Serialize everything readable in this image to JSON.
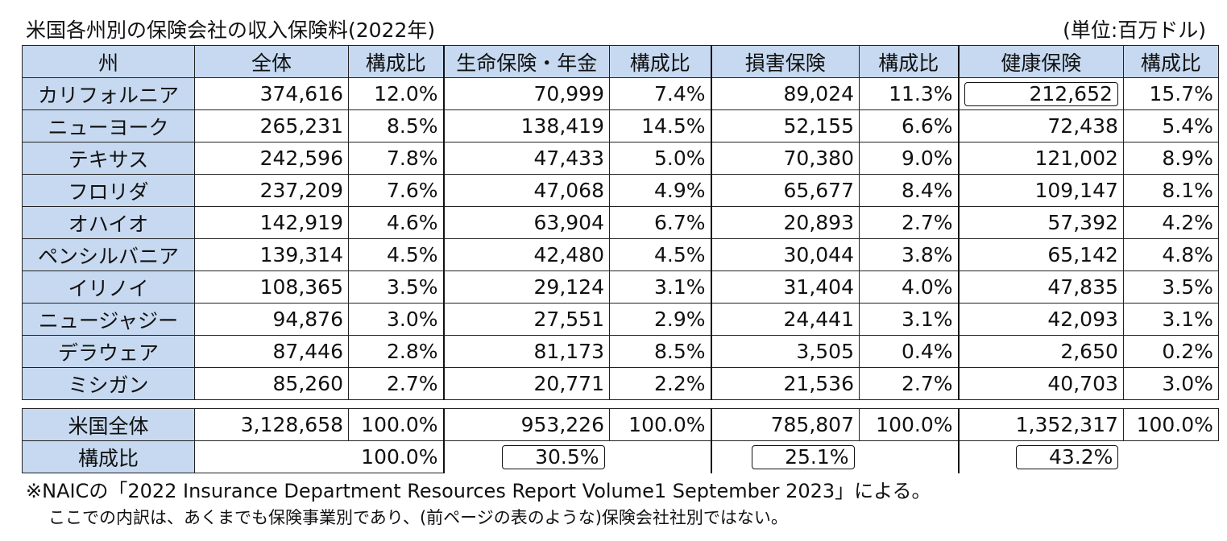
{
  "title": "米国各州別の保険会社の収入保険料(2022年)",
  "unit": "(単位:百万ドル)",
  "headers": [
    "州",
    "全体",
    "構成比",
    "生命保険・年金",
    "構成比",
    "損害保険",
    "構成比",
    "健康保険",
    "構成比"
  ],
  "rows": [
    {
      "state": "カリフォルニア",
      "total": "374,616",
      "total_pct": "12.0%",
      "life": "70,999",
      "life_pct": "7.4%",
      "pc": "89,024",
      "pc_pct": "11.3%",
      "health": "212,652",
      "health_pct": "15.7%"
    },
    {
      "state": "ニューヨーク",
      "total": "265,231",
      "total_pct": "8.5%",
      "life": "138,419",
      "life_pct": "14.5%",
      "pc": "52,155",
      "pc_pct": "6.6%",
      "health": "72,438",
      "health_pct": "5.4%"
    },
    {
      "state": "テキサス",
      "total": "242,596",
      "total_pct": "7.8%",
      "life": "47,433",
      "life_pct": "5.0%",
      "pc": "70,380",
      "pc_pct": "9.0%",
      "health": "121,002",
      "health_pct": "8.9%"
    },
    {
      "state": "フロリダ",
      "total": "237,209",
      "total_pct": "7.6%",
      "life": "47,068",
      "life_pct": "4.9%",
      "pc": "65,677",
      "pc_pct": "8.4%",
      "health": "109,147",
      "health_pct": "8.1%"
    },
    {
      "state": "オハイオ",
      "total": "142,919",
      "total_pct": "4.6%",
      "life": "63,904",
      "life_pct": "6.7%",
      "pc": "20,893",
      "pc_pct": "2.7%",
      "health": "57,392",
      "health_pct": "4.2%"
    },
    {
      "state": "ペンシルバニア",
      "total": "139,314",
      "total_pct": "4.5%",
      "life": "42,480",
      "life_pct": "4.5%",
      "pc": "30,044",
      "pc_pct": "3.8%",
      "health": "65,142",
      "health_pct": "4.8%"
    },
    {
      "state": "イリノイ",
      "total": "108,365",
      "total_pct": "3.5%",
      "life": "29,124",
      "life_pct": "3.1%",
      "pc": "31,404",
      "pc_pct": "4.0%",
      "health": "47,835",
      "health_pct": "3.5%"
    },
    {
      "state": "ニュージャジー",
      "total": "94,876",
      "total_pct": "3.0%",
      "life": "27,551",
      "life_pct": "2.9%",
      "pc": "24,441",
      "pc_pct": "3.1%",
      "health": "42,093",
      "health_pct": "3.1%"
    },
    {
      "state": "デラウェア",
      "total": "87,446",
      "total_pct": "2.8%",
      "life": "81,173",
      "life_pct": "8.5%",
      "pc": "3,505",
      "pc_pct": "0.4%",
      "health": "2,650",
      "health_pct": "0.2%"
    },
    {
      "state": "ミシガン",
      "total": "85,260",
      "total_pct": "2.7%",
      "life": "20,771",
      "life_pct": "2.2%",
      "pc": "21,536",
      "pc_pct": "2.7%",
      "health": "40,703",
      "health_pct": "3.0%"
    }
  ],
  "us_total": {
    "state": "米国全体",
    "total": "3,128,658",
    "total_pct": "100.0%",
    "life": "953,226",
    "life_pct": "100.0%",
    "pc": "785,807",
    "pc_pct": "100.0%",
    "health": "1,352,317",
    "health_pct": "100.0%"
  },
  "share_row": {
    "label": "構成比",
    "total": "100.0%",
    "life": "30.5%",
    "pc": "25.1%",
    "health": "43.2%"
  },
  "note1": "※NAICの「2022 Insurance Department Resources Report Volume1 September 2023」による。",
  "note2": "ここでの内訳は、あくまでも保険事業別であり、(前ページの表のような)保険会社社別ではない。"
}
